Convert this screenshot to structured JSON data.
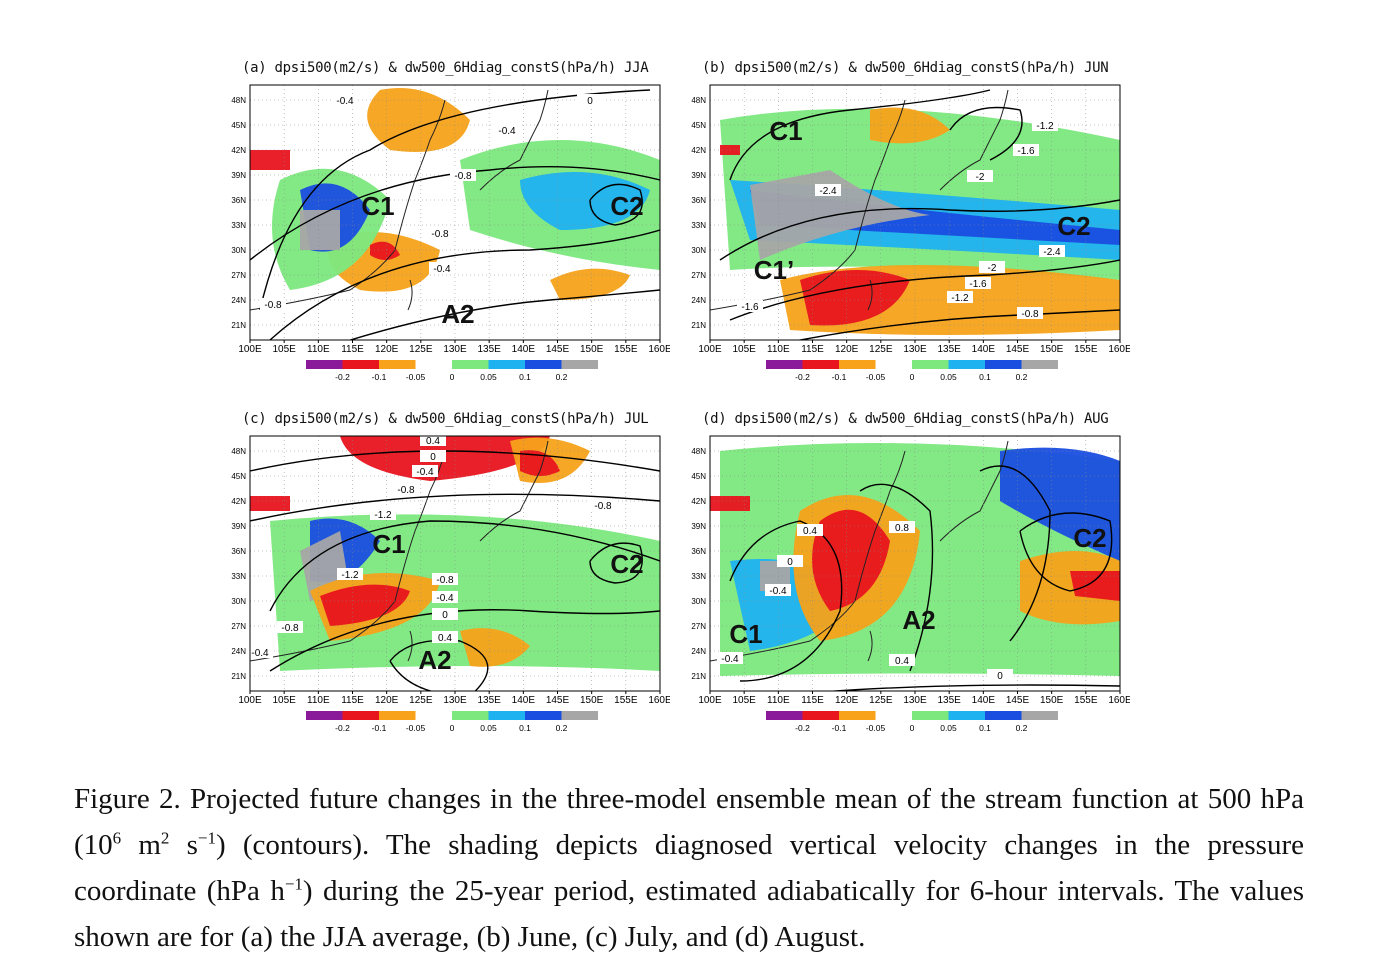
{
  "panels": [
    {
      "id": "a",
      "title": "(a) dpsi500(m2/s) & dw500_6Hdiag_constS(hPa/h) JJA",
      "annotations": [
        "C1",
        "C2",
        "A2"
      ],
      "contour_labels": [
        "-0.4",
        "0",
        "-0.4",
        "-0.8",
        "-0.8",
        "-0.4",
        "-0.8"
      ]
    },
    {
      "id": "b",
      "title": "(b) dpsi500(m2/s) & dw500_6Hdiag_constS(hPa/h) JUN",
      "annotations": [
        "C1",
        "C2",
        "C1’"
      ],
      "contour_labels": [
        "-1.2",
        "-1.6",
        "-2",
        "-2.4",
        "-2.4",
        "-2",
        "-1.6",
        "-1.2",
        "-0.8",
        "-1.6"
      ]
    },
    {
      "id": "c",
      "title": "(c) dpsi500(m2/s) & dw500_6Hdiag_constS(hPa/h) JUL",
      "annotations": [
        "C1",
        "C2",
        "A2"
      ],
      "contour_labels": [
        "0.4",
        "0",
        "-0.4",
        "-0.8",
        "-0.8",
        "-1.2",
        "-1.2",
        "-0.8",
        "-0.4",
        "0",
        "0.4",
        "-0.8",
        "-0.4"
      ]
    },
    {
      "id": "d",
      "title": "(d) dpsi500(m2/s) & dw500_6Hdiag_constS(hPa/h) AUG",
      "annotations": [
        "C2",
        "C1",
        "A2"
      ],
      "contour_labels": [
        "0.4",
        "0.8",
        "0",
        "-0.4",
        "-0.4",
        "0.4",
        "0"
      ]
    }
  ],
  "axes": {
    "lon_labels": [
      "100E",
      "105E",
      "110E",
      "115E",
      "120E",
      "125E",
      "130E",
      "135E",
      "140E",
      "145E",
      "150E",
      "155E",
      "160E"
    ],
    "lat_labels": [
      "48N",
      "45N",
      "42N",
      "39N",
      "36N",
      "33N",
      "30N",
      "27N",
      "24N",
      "21N"
    ]
  },
  "colorbar": {
    "labels": [
      "-0.2",
      "-0.1",
      "-0.05",
      "0",
      "0.05",
      "0.1",
      "0.2"
    ],
    "colors": [
      "#8b1a9a",
      "#e8141e",
      "#f7a21a",
      "#ffffff",
      "#7ce87e",
      "#1eb2f0",
      "#1a4ee0",
      "#a6a6a6"
    ]
  },
  "caption": {
    "p1": "Figure 2. Projected future changes in the three-model ensemble mean of the stream function at 500 hPa (10",
    "sup1": "6",
    "p2": " m",
    "sup2": "2",
    "p3": " s",
    "sup3": "−1",
    "p4": ") (contours). The shading depicts diagnosed vertical velocity changes in the pressure coordinate (hPa h",
    "sup4": "−1",
    "p5": ") during the 25-year period, estimated adiabatically for 6-hour intervals. The values shown are for (a) the JJA average, (b) June, (c) July, and (d) August."
  }
}
